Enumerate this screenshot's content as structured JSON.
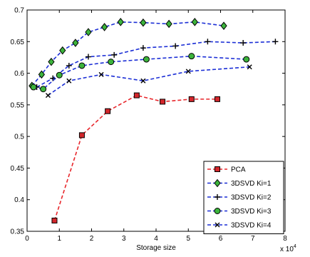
{
  "chart_data": {
    "type": "line",
    "title": "",
    "xlabel": "Storage size",
    "ylabel": "",
    "x_exponent_label": "x 10",
    "x_exponent_power": "4",
    "xlim": [
      0,
      8
    ],
    "ylim": [
      0.35,
      0.7
    ],
    "x_ticks": [
      0,
      1,
      2,
      3,
      4,
      5,
      6,
      7,
      8
    ],
    "y_ticks": [
      0.35,
      0.4,
      0.45,
      0.5,
      0.55,
      0.6,
      0.65,
      0.7
    ],
    "grid": false,
    "legend_position": "bottom-right",
    "series": [
      {
        "name": "PCA",
        "color": "#e8262b",
        "marker": "square",
        "marker_fill": "#d3262b",
        "x": [
          0.85,
          1.7,
          2.5,
          3.4,
          4.2,
          5.1,
          5.9
        ],
        "y": [
          0.367,
          0.502,
          0.54,
          0.565,
          0.555,
          0.559,
          0.559
        ]
      },
      {
        "name": "3DSVD Ki=1",
        "color": "#1c2fd6",
        "marker": "diamond",
        "marker_fill": "#3cb43c",
        "x": [
          0.15,
          0.45,
          0.75,
          1.1,
          1.5,
          1.9,
          2.4,
          2.9,
          3.6,
          4.4,
          5.2,
          6.1
        ],
        "y": [
          0.58,
          0.598,
          0.618,
          0.636,
          0.648,
          0.665,
          0.673,
          0.681,
          0.68,
          0.678,
          0.681,
          0.675
        ]
      },
      {
        "name": "3DSVD Ki=2",
        "color": "#1c2fd6",
        "marker": "plus",
        "marker_fill": "#000000",
        "x": [
          0.3,
          0.8,
          1.3,
          1.9,
          2.7,
          3.6,
          4.6,
          5.6,
          6.7,
          7.7
        ],
        "y": [
          0.578,
          0.592,
          0.612,
          0.626,
          0.629,
          0.64,
          0.643,
          0.65,
          0.648,
          0.65
        ]
      },
      {
        "name": "3DSVD Ki=3",
        "color": "#1c2fd6",
        "marker": "circle",
        "marker_fill": "#3cb43c",
        "x": [
          0.2,
          0.5,
          1.0,
          1.7,
          2.6,
          3.7,
          5.1,
          6.8
        ],
        "y": [
          0.578,
          0.575,
          0.597,
          0.612,
          0.618,
          0.622,
          0.627,
          0.622
        ]
      },
      {
        "name": "3DSVD Ki=4",
        "color": "#1c2fd6",
        "marker": "x",
        "marker_fill": "#000000",
        "x": [
          0.65,
          1.3,
          2.3,
          3.6,
          5.0,
          6.9
        ],
        "y": [
          0.565,
          0.588,
          0.598,
          0.588,
          0.603,
          0.61
        ]
      }
    ]
  }
}
